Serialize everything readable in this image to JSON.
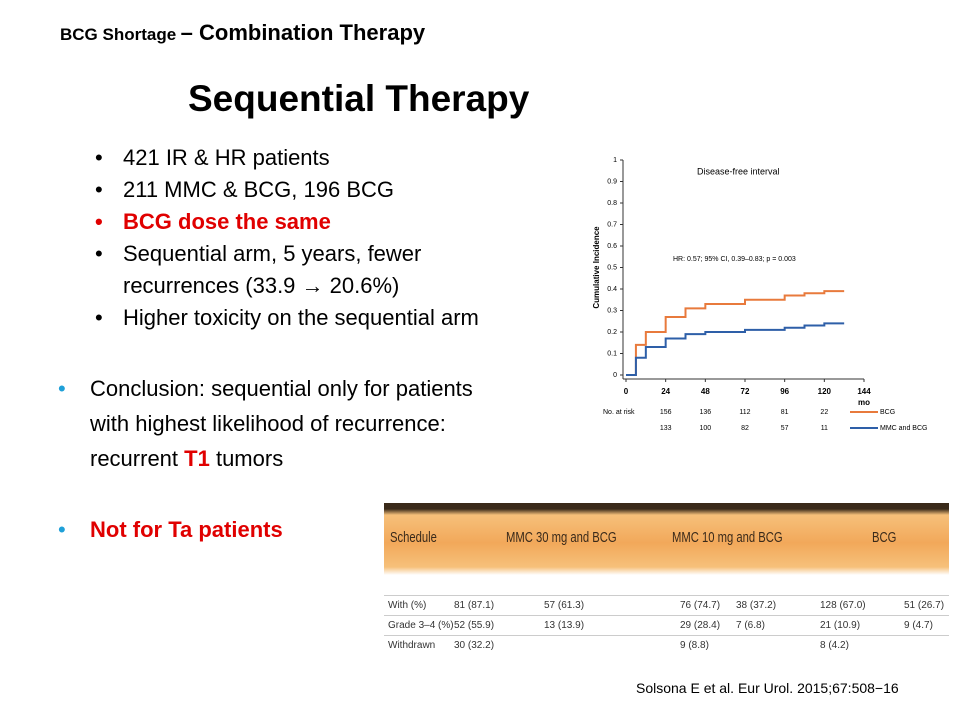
{
  "header": {
    "small": "BCG Shortage",
    "large": "– Combination Therapy"
  },
  "title": "Sequential Therapy",
  "sub_bullets": [
    {
      "text": "421 IR & HR patients",
      "highlight": false
    },
    {
      "text": "211 MMC & BCG, 196 BCG",
      "highlight": false
    },
    {
      "text": "BCG dose the same",
      "highlight": true
    },
    {
      "text": "Sequential arm, 5 years, fewer recurrences (33.9 → 20.6%)",
      "highlight": false
    },
    {
      "text": "Higher toxicity on the sequential arm",
      "highlight": false
    }
  ],
  "main_bullets": [
    {
      "parts": [
        {
          "text": "Conclusion: sequential only for patients with highest likelihood of recurrence: recurrent ",
          "highlight": false
        },
        {
          "text": "T1",
          "highlight": true
        },
        {
          "text": " tumors",
          "highlight": false
        }
      ]
    },
    {
      "parts": [
        {
          "text": "Not for Ta patients",
          "highlight": true
        }
      ]
    }
  ],
  "figure": {
    "type": "line",
    "title": "Disease-free interval",
    "y_label": "Cumulative Incidence",
    "annotation": "HR: 0.57; 95% CI, 0.39–0.83; p = 0.003",
    "x_unit": "mo",
    "at_risk_label": "No. at risk",
    "x": [
      0,
      6,
      12,
      24,
      36,
      48,
      72,
      96,
      108,
      120,
      132
    ],
    "series": [
      {
        "name": "BCG",
        "color": "#e87a3c",
        "values": [
          0,
          0.14,
          0.2,
          0.27,
          0.31,
          0.33,
          0.35,
          0.37,
          0.38,
          0.39,
          0.39
        ],
        "at_risk": [
          156,
          136,
          112,
          81,
          22
        ]
      },
      {
        "name": "MMC and BCG",
        "color": "#2e5fa8",
        "values": [
          0,
          0.08,
          0.13,
          0.17,
          0.19,
          0.2,
          0.21,
          0.22,
          0.23,
          0.24,
          0.24
        ],
        "at_risk": [
          133,
          100,
          82,
          57,
          11
        ]
      }
    ],
    "xlim": [
      0,
      144
    ],
    "xticks": [
      0,
      24,
      48,
      72,
      96,
      120,
      144
    ],
    "ylim": [
      0,
      1
    ],
    "yticks": [
      0,
      0.1,
      0.2,
      0.3,
      0.4,
      0.5,
      0.6,
      0.7,
      0.8,
      0.9,
      1
    ]
  },
  "table": {
    "header": [
      "Schedule",
      "MMC 30 mg and BCG",
      "MMC 10 mg and BCG",
      "BCG"
    ],
    "rows": [
      [
        "With (%)",
        "81 (87.1)",
        "57 (61.3)",
        "76 (74.7)",
        "38 (37.2)",
        "128 (67.0)",
        "51 (26.7)"
      ],
      [
        "Grade 3–4 (%)",
        "52 (55.9)",
        "13 (13.9)",
        "29 (28.4)",
        "7 (6.8)",
        "21 (10.9)",
        "9 (4.7)"
      ],
      [
        "Withdrawn",
        "30 (32.2)",
        null,
        "9 (8.8)",
        null,
        "8 (4.2)",
        null
      ]
    ]
  },
  "citation": "Solsona E et al. Eur Urol. 2015;67:508−16"
}
